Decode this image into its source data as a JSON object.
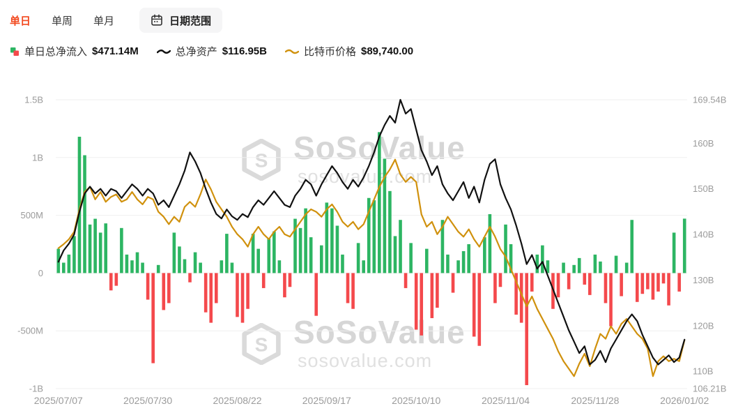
{
  "colors": {
    "tab_active": "#f2491f",
    "bar_pos": "#2db563",
    "bar_neg": "#f4494c",
    "line_assets": "#111111",
    "line_btc": "#d0910d"
  },
  "toolbar": {
    "tabs": [
      {
        "label": "单日",
        "active": true
      },
      {
        "label": "单周",
        "active": false
      },
      {
        "label": "单月",
        "active": false
      }
    ],
    "date_range": {
      "label": "日期范围"
    }
  },
  "legend": {
    "items": [
      {
        "label": "单日总净流入",
        "value": "$471.14M"
      },
      {
        "label": "总净资产",
        "value": "$116.95B"
      },
      {
        "label": "比特币价格",
        "value": "$89,740.00"
      }
    ]
  },
  "watermark": {
    "title": "SoSoValue",
    "subtitle": "sosovalue.com",
    "logo_letter": "S"
  },
  "chart_data": {
    "type": "combo",
    "title": "",
    "grid": true,
    "x_tick_labels": [
      "2025/07/07",
      "2025/07/30",
      "2025/08/22",
      "2025/09/17",
      "2025/10/10",
      "2025/11/04",
      "2025/11/28",
      "2026/01/02"
    ],
    "x_tick_indices": [
      0,
      17,
      34,
      51,
      68,
      85,
      102,
      119
    ],
    "left_axis": {
      "unit": "M",
      "min": -1000,
      "max": 1500,
      "values": [
        1500,
        1000,
        500,
        0,
        -500,
        -1000
      ],
      "ticks": [
        "1.5B",
        "1B",
        "500M",
        "0",
        "-500M",
        "-1B"
      ]
    },
    "right_axis": {
      "unit": "B",
      "min": 106.21,
      "max": 169.54,
      "values": [
        169.54,
        160,
        150,
        140,
        130,
        120,
        110,
        106.21
      ],
      "ticks": [
        "169.54B",
        "160B",
        "150B",
        "140B",
        "130B",
        "120B",
        "110B",
        "106.21B"
      ]
    },
    "btc_axis": {
      "unit": "thousand_usd",
      "min": 80,
      "max": 138,
      "hidden": true
    },
    "series": [
      {
        "name": "单日总净流入",
        "type": "bar",
        "axis": "left",
        "unit": "M",
        "latest": "$471.14M",
        "values": [
          210,
          90,
          160,
          320,
          1180,
          1020,
          420,
          470,
          350,
          430,
          -150,
          -110,
          390,
          160,
          110,
          180,
          90,
          -230,
          -780,
          70,
          -320,
          -260,
          350,
          230,
          120,
          -80,
          180,
          90,
          -340,
          -430,
          -260,
          110,
          340,
          90,
          -380,
          -430,
          -310,
          340,
          210,
          -130,
          300,
          360,
          110,
          -210,
          -120,
          470,
          390,
          560,
          310,
          -370,
          240,
          610,
          560,
          410,
          160,
          -260,
          -310,
          260,
          110,
          650,
          630,
          1220,
          990,
          710,
          320,
          460,
          -130,
          260,
          -490,
          -540,
          210,
          -390,
          -300,
          460,
          160,
          -170,
          110,
          190,
          250,
          -550,
          -630,
          310,
          510,
          -260,
          -120,
          420,
          250,
          -360,
          -430,
          -970,
          -160,
          160,
          240,
          110,
          -310,
          -210,
          90,
          -140,
          70,
          130,
          -100,
          -190,
          160,
          100,
          -260,
          -460,
          150,
          -200,
          90,
          460,
          -250,
          -180,
          -140,
          -230,
          -160,
          -90,
          -280,
          350,
          -160,
          471.14
        ]
      },
      {
        "name": "总净资产",
        "type": "line",
        "axis": "right",
        "unit": "B",
        "latest": "$116.95B",
        "values": [
          134,
          136.5,
          138,
          140,
          145,
          149,
          150.5,
          149,
          150,
          148.5,
          150,
          149.5,
          148,
          149.5,
          151,
          150,
          148.5,
          150,
          149,
          146.5,
          147.5,
          146,
          148.5,
          151,
          154,
          158,
          156,
          153.5,
          150,
          147,
          144.5,
          143.5,
          145.5,
          144,
          143.2,
          144.5,
          143.8,
          146,
          147.5,
          146.5,
          148,
          149.5,
          148,
          146.5,
          146,
          148.5,
          150,
          152,
          151,
          148.5,
          151,
          153,
          155,
          153.5,
          151.5,
          150,
          152,
          150.5,
          152.5,
          155,
          158,
          161.5,
          164,
          166,
          164.5,
          169.54,
          166.5,
          167.5,
          163,
          158.5,
          156,
          153,
          155,
          151,
          149,
          147.5,
          149.5,
          151.5,
          148,
          150.5,
          147,
          152,
          155.5,
          156.5,
          151,
          148,
          145.5,
          142,
          138,
          133.5,
          135.5,
          132.5,
          134,
          131,
          128,
          125,
          122,
          119,
          116.5,
          114,
          115.5,
          111.5,
          112.5,
          114.5,
          112,
          115,
          117,
          119,
          121,
          122.5,
          121,
          118,
          115.5,
          113,
          111.5,
          112.5,
          113.5,
          112,
          113,
          116.95
        ]
      },
      {
        "name": "比特币价格",
        "type": "line",
        "axis": "btc",
        "unit": "thousand_usd",
        "latest": "$89,740.00",
        "values": [
          108.2,
          109,
          110,
          111.5,
          116,
          119.5,
          120.5,
          118,
          119.5,
          117.5,
          118.5,
          119,
          117.5,
          118,
          119.5,
          118,
          117,
          118.5,
          118,
          115.5,
          114.5,
          113,
          114.5,
          113.5,
          116.5,
          117.5,
          116.5,
          119,
          122,
          120,
          117.5,
          116,
          114.5,
          112.5,
          111,
          110,
          108.5,
          111,
          112.5,
          111,
          110,
          111.5,
          112.5,
          111,
          110.5,
          112,
          113.5,
          115,
          116,
          115.5,
          114.5,
          116,
          117,
          115.5,
          113.5,
          112.5,
          113.5,
          112,
          113,
          115.5,
          118,
          120.5,
          122.5,
          124,
          126,
          123,
          121.5,
          122.5,
          121.5,
          115,
          112.5,
          113.5,
          111,
          112.5,
          114.5,
          113,
          111.5,
          110.5,
          112,
          110,
          108.5,
          110.5,
          112.5,
          110.5,
          108,
          106.5,
          104,
          101.5,
          99,
          96.5,
          98.5,
          96,
          94,
          92,
          90,
          87.5,
          85.5,
          84,
          82.5,
          85,
          87,
          84.5,
          88,
          91,
          90,
          92.5,
          91,
          93,
          94,
          92.5,
          91,
          90,
          88,
          82.5,
          85.5,
          86.5,
          85.5,
          86,
          85.5,
          89.74
        ]
      }
    ]
  }
}
